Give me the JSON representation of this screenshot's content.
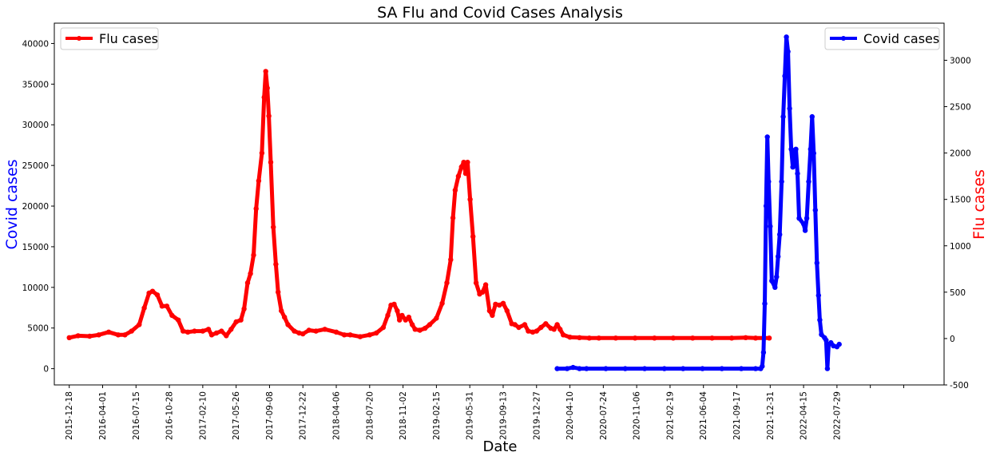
{
  "chart_data": {
    "type": "line",
    "title": "SA Flu and Covid Cases Analysis",
    "xlabel": "Date",
    "ylabel_left": "Covid cases",
    "ylabel_right": "Flu cases",
    "grid": false,
    "x_range": [
      "2015-11-01",
      "2023-07-01"
    ],
    "ylim_left": [
      -2000,
      42500
    ],
    "ylim_right": [
      -500,
      3400
    ],
    "yticks_left": [
      "0",
      "5000",
      "10000",
      "15000",
      "20000",
      "25000",
      "30000",
      "35000",
      "40000"
    ],
    "yticks_right": [
      "-500",
      "0",
      "500",
      "1000",
      "1500",
      "2000",
      "2500",
      "3000"
    ],
    "xticks": [
      "2015-12-18",
      "2016-04-01",
      "2016-07-15",
      "2016-10-28",
      "2017-02-10",
      "2017-05-26",
      "2017-09-08",
      "2017-12-22",
      "2018-04-06",
      "2018-07-20",
      "2018-11-02",
      "2019-02-15",
      "2019-05-31",
      "2019-09-13",
      "2019-12-27",
      "2020-04-10",
      "2020-07-24",
      "2020-11-06",
      "2021-02-19",
      "2021-06-04",
      "2021-09-17",
      "2021-12-31",
      "2022-04-15",
      "2022-07-29"
    ],
    "series": [
      {
        "name": "Flu cases",
        "axis": "right",
        "color": "#ff0000",
        "points": [
          [
            "2015-12-18",
            10
          ],
          [
            "2016-01-15",
            30
          ],
          [
            "2016-02-20",
            25
          ],
          [
            "2016-03-20",
            40
          ],
          [
            "2016-04-20",
            70
          ],
          [
            "2016-05-20",
            40
          ],
          [
            "2016-06-10",
            40
          ],
          [
            "2016-07-01",
            80
          ],
          [
            "2016-07-25",
            150
          ],
          [
            "2016-08-10",
            330
          ],
          [
            "2016-08-25",
            490
          ],
          [
            "2016-09-05",
            510
          ],
          [
            "2016-09-20",
            470
          ],
          [
            "2016-10-05",
            350
          ],
          [
            "2016-10-20",
            350
          ],
          [
            "2016-11-05",
            250
          ],
          [
            "2016-11-25",
            200
          ],
          [
            "2016-12-10",
            80
          ],
          [
            "2016-12-25",
            70
          ],
          [
            "2017-01-15",
            80
          ],
          [
            "2017-02-10",
            80
          ],
          [
            "2017-02-28",
            100
          ],
          [
            "2017-03-10",
            40
          ],
          [
            "2017-03-25",
            60
          ],
          [
            "2017-04-10",
            80
          ],
          [
            "2017-04-25",
            30
          ],
          [
            "2017-05-10",
            100
          ],
          [
            "2017-05-26",
            180
          ],
          [
            "2017-06-10",
            200
          ],
          [
            "2017-06-20",
            320
          ],
          [
            "2017-07-01",
            600
          ],
          [
            "2017-07-10",
            700
          ],
          [
            "2017-07-20",
            900
          ],
          [
            "2017-07-28",
            1400
          ],
          [
            "2017-08-05",
            1700
          ],
          [
            "2017-08-15",
            2000
          ],
          [
            "2017-08-22",
            2600
          ],
          [
            "2017-08-27",
            2880
          ],
          [
            "2017-09-01",
            2700
          ],
          [
            "2017-09-06",
            2400
          ],
          [
            "2017-09-12",
            1900
          ],
          [
            "2017-09-20",
            1200
          ],
          [
            "2017-09-28",
            800
          ],
          [
            "2017-10-05",
            500
          ],
          [
            "2017-10-15",
            300
          ],
          [
            "2017-10-25",
            230
          ],
          [
            "2017-11-05",
            150
          ],
          [
            "2017-11-25",
            80
          ],
          [
            "2017-12-10",
            60
          ],
          [
            "2017-12-22",
            50
          ],
          [
            "2018-01-10",
            90
          ],
          [
            "2018-02-01",
            80
          ],
          [
            "2018-03-01",
            100
          ],
          [
            "2018-04-06",
            70
          ],
          [
            "2018-05-01",
            40
          ],
          [
            "2018-05-20",
            40
          ],
          [
            "2018-06-20",
            20
          ],
          [
            "2018-07-20",
            40
          ],
          [
            "2018-08-10",
            60
          ],
          [
            "2018-09-01",
            120
          ],
          [
            "2018-09-15",
            250
          ],
          [
            "2018-09-25",
            360
          ],
          [
            "2018-10-05",
            370
          ],
          [
            "2018-10-15",
            300
          ],
          [
            "2018-10-22",
            200
          ],
          [
            "2018-10-30",
            250
          ],
          [
            "2018-11-10",
            200
          ],
          [
            "2018-11-20",
            230
          ],
          [
            "2018-12-01",
            150
          ],
          [
            "2018-12-10",
            100
          ],
          [
            "2018-12-25",
            90
          ],
          [
            "2019-01-10",
            110
          ],
          [
            "2019-01-25",
            150
          ],
          [
            "2019-02-15",
            220
          ],
          [
            "2019-03-05",
            380
          ],
          [
            "2019-03-20",
            600
          ],
          [
            "2019-04-01",
            850
          ],
          [
            "2019-04-08",
            1300
          ],
          [
            "2019-04-15",
            1600
          ],
          [
            "2019-04-25",
            1750
          ],
          [
            "2019-05-05",
            1850
          ],
          [
            "2019-05-12",
            1900
          ],
          [
            "2019-05-18",
            1780
          ],
          [
            "2019-05-24",
            1900
          ],
          [
            "2019-06-01",
            1500
          ],
          [
            "2019-06-10",
            1100
          ],
          [
            "2019-06-20",
            600
          ],
          [
            "2019-07-01",
            480
          ],
          [
            "2019-07-10",
            500
          ],
          [
            "2019-07-20",
            580
          ],
          [
            "2019-08-01",
            300
          ],
          [
            "2019-08-10",
            250
          ],
          [
            "2019-08-20",
            370
          ],
          [
            "2019-09-01",
            360
          ],
          [
            "2019-09-13",
            380
          ],
          [
            "2019-09-25",
            300
          ],
          [
            "2019-10-10",
            160
          ],
          [
            "2019-10-20",
            150
          ],
          [
            "2019-11-01",
            120
          ],
          [
            "2019-11-20",
            150
          ],
          [
            "2019-12-01",
            80
          ],
          [
            "2019-12-15",
            70
          ],
          [
            "2019-12-27",
            80
          ],
          [
            "2020-01-10",
            120
          ],
          [
            "2020-01-25",
            160
          ],
          [
            "2020-02-10",
            110
          ],
          [
            "2020-02-20",
            100
          ],
          [
            "2020-03-01",
            150
          ],
          [
            "2020-03-10",
            100
          ],
          [
            "2020-03-20",
            40
          ],
          [
            "2020-04-10",
            15
          ],
          [
            "2020-05-10",
            10
          ],
          [
            "2020-06-10",
            5
          ],
          [
            "2020-07-10",
            5
          ],
          [
            "2020-09-01",
            5
          ],
          [
            "2020-11-01",
            5
          ],
          [
            "2021-01-01",
            5
          ],
          [
            "2021-03-01",
            5
          ],
          [
            "2021-05-01",
            5
          ],
          [
            "2021-07-01",
            5
          ],
          [
            "2021-09-01",
            5
          ],
          [
            "2021-10-15",
            10
          ],
          [
            "2021-11-15",
            5
          ],
          [
            "2021-12-28",
            5
          ]
        ]
      },
      {
        "name": "Covid cases",
        "axis": "left",
        "color": "#0000ff",
        "points": [
          [
            "2020-03-01",
            0
          ],
          [
            "2020-04-01",
            0
          ],
          [
            "2020-04-20",
            150
          ],
          [
            "2020-05-10",
            0
          ],
          [
            "2020-06-01",
            0
          ],
          [
            "2020-08-01",
            0
          ],
          [
            "2020-10-01",
            0
          ],
          [
            "2020-12-01",
            0
          ],
          [
            "2021-02-01",
            0
          ],
          [
            "2021-04-01",
            0
          ],
          [
            "2021-06-01",
            0
          ],
          [
            "2021-08-01",
            0
          ],
          [
            "2021-10-01",
            0
          ],
          [
            "2021-11-15",
            0
          ],
          [
            "2021-12-01",
            0
          ],
          [
            "2021-12-06",
            300
          ],
          [
            "2021-12-10",
            2000
          ],
          [
            "2021-12-14",
            8000
          ],
          [
            "2021-12-18",
            20000
          ],
          [
            "2021-12-22",
            28500
          ],
          [
            "2021-12-26",
            23000
          ],
          [
            "2021-12-31",
            17500
          ],
          [
            "2022-01-05",
            10800
          ],
          [
            "2022-01-15",
            10000
          ],
          [
            "2022-01-20",
            11300
          ],
          [
            "2022-01-25",
            13800
          ],
          [
            "2022-01-30",
            16500
          ],
          [
            "2022-02-05",
            23000
          ],
          [
            "2022-02-10",
            31000
          ],
          [
            "2022-02-15",
            36000
          ],
          [
            "2022-02-20",
            40800
          ],
          [
            "2022-02-25",
            39000
          ],
          [
            "2022-03-02",
            32000
          ],
          [
            "2022-03-07",
            27000
          ],
          [
            "2022-03-12",
            24800
          ],
          [
            "2022-03-17",
            26500
          ],
          [
            "2022-03-22",
            27000
          ],
          [
            "2022-03-27",
            24000
          ],
          [
            "2022-04-01",
            18500
          ],
          [
            "2022-04-15",
            17800
          ],
          [
            "2022-04-20",
            17000
          ],
          [
            "2022-04-25",
            18500
          ],
          [
            "2022-05-01",
            23000
          ],
          [
            "2022-05-07",
            27000
          ],
          [
            "2022-05-12",
            31000
          ],
          [
            "2022-05-17",
            26500
          ],
          [
            "2022-05-22",
            19500
          ],
          [
            "2022-05-27",
            13000
          ],
          [
            "2022-06-01",
            9000
          ],
          [
            "2022-06-05",
            6000
          ],
          [
            "2022-06-10",
            4200
          ],
          [
            "2022-06-20",
            3800
          ],
          [
            "2022-06-25",
            3500
          ],
          [
            "2022-06-29",
            0
          ],
          [
            "2022-07-03",
            3000
          ],
          [
            "2022-07-10",
            3200
          ],
          [
            "2022-07-18",
            2800
          ],
          [
            "2022-07-29",
            2700
          ],
          [
            "2022-08-05",
            3000
          ]
        ]
      }
    ],
    "legend": [
      {
        "label": "Flu cases",
        "position": "top-left"
      },
      {
        "label": "Covid cases",
        "position": "top-right"
      }
    ]
  }
}
